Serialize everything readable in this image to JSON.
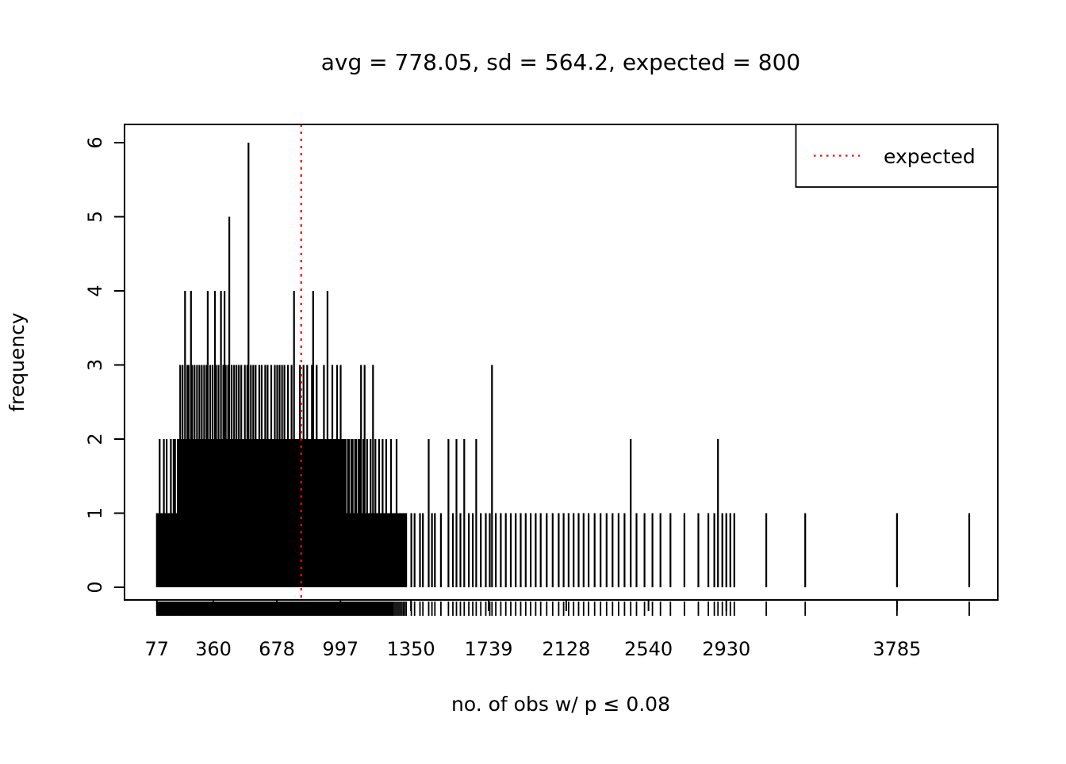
{
  "figure": {
    "title": "avg = 778.05, sd = 564.2, expected = 800"
  },
  "chart_data": {
    "type": "bar",
    "subtype": "spike-frequency-plot-with-rug",
    "title": "avg = 778.05, sd = 564.2, expected = 800",
    "xlabel": "no. of obs w/ p ≤ 0.08",
    "ylabel": "frequency",
    "xlim": [
      -85,
      4290
    ],
    "ylim": [
      0,
      6
    ],
    "x_ticks": [
      77,
      360,
      678,
      997,
      1350,
      1739,
      2128,
      2540,
      2930,
      3785
    ],
    "y_ticks": [
      0,
      1,
      2,
      3,
      4,
      5,
      6
    ],
    "grid": false,
    "bar_color": "#000000",
    "expected_line": {
      "x": 800,
      "color": "#ff0000",
      "style": "dotted",
      "label": "expected"
    },
    "legend": {
      "position": "top-right",
      "entries": [
        {
          "label": "expected",
          "color": "#ff0000",
          "line_style": "dotted"
        }
      ]
    },
    "rug": true,
    "spikes": [
      [
        77,
        1
      ],
      [
        84,
        1
      ],
      [
        91,
        2
      ],
      [
        98,
        1
      ],
      [
        105,
        1
      ],
      [
        112,
        2
      ],
      [
        119,
        1
      ],
      [
        126,
        2
      ],
      [
        133,
        1
      ],
      [
        140,
        1
      ],
      [
        147,
        2
      ],
      [
        154,
        1
      ],
      [
        161,
        2
      ],
      [
        168,
        2
      ],
      [
        175,
        1
      ],
      [
        182,
        2
      ],
      [
        188,
        2
      ],
      [
        194,
        3
      ],
      [
        200,
        2
      ],
      [
        206,
        3
      ],
      [
        212,
        2
      ],
      [
        218,
        4
      ],
      [
        224,
        2
      ],
      [
        230,
        3
      ],
      [
        236,
        3
      ],
      [
        242,
        2
      ],
      [
        248,
        4
      ],
      [
        254,
        3
      ],
      [
        260,
        2
      ],
      [
        266,
        3
      ],
      [
        272,
        2
      ],
      [
        278,
        3
      ],
      [
        284,
        2
      ],
      [
        290,
        3
      ],
      [
        296,
        2
      ],
      [
        302,
        3
      ],
      [
        308,
        2
      ],
      [
        314,
        3
      ],
      [
        320,
        2
      ],
      [
        326,
        3
      ],
      [
        332,
        4
      ],
      [
        338,
        2
      ],
      [
        344,
        3
      ],
      [
        350,
        2
      ],
      [
        356,
        3
      ],
      [
        362,
        2
      ],
      [
        368,
        4
      ],
      [
        374,
        3
      ],
      [
        380,
        2
      ],
      [
        386,
        3
      ],
      [
        392,
        2
      ],
      [
        398,
        4
      ],
      [
        404,
        2
      ],
      [
        410,
        3
      ],
      [
        416,
        4
      ],
      [
        422,
        3
      ],
      [
        428,
        2
      ],
      [
        434,
        3
      ],
      [
        440,
        5
      ],
      [
        446,
        2
      ],
      [
        452,
        3
      ],
      [
        458,
        2
      ],
      [
        464,
        3
      ],
      [
        470,
        2
      ],
      [
        476,
        3
      ],
      [
        482,
        2
      ],
      [
        488,
        3
      ],
      [
        494,
        2
      ],
      [
        500,
        3
      ],
      [
        506,
        2
      ],
      [
        512,
        2
      ],
      [
        518,
        3
      ],
      [
        524,
        2
      ],
      [
        530,
        3
      ],
      [
        536,
        6
      ],
      [
        542,
        2
      ],
      [
        548,
        3
      ],
      [
        554,
        2
      ],
      [
        560,
        3
      ],
      [
        566,
        2
      ],
      [
        572,
        3
      ],
      [
        578,
        2
      ],
      [
        584,
        2
      ],
      [
        590,
        3
      ],
      [
        596,
        2
      ],
      [
        602,
        3
      ],
      [
        608,
        2
      ],
      [
        614,
        2
      ],
      [
        620,
        3
      ],
      [
        626,
        2
      ],
      [
        632,
        3
      ],
      [
        638,
        2
      ],
      [
        644,
        2
      ],
      [
        650,
        3
      ],
      [
        656,
        2
      ],
      [
        662,
        2
      ],
      [
        668,
        3
      ],
      [
        674,
        2
      ],
      [
        680,
        3
      ],
      [
        686,
        2
      ],
      [
        692,
        3
      ],
      [
        698,
        2
      ],
      [
        704,
        3
      ],
      [
        710,
        2
      ],
      [
        716,
        3
      ],
      [
        722,
        2
      ],
      [
        728,
        2
      ],
      [
        734,
        3
      ],
      [
        740,
        2
      ],
      [
        746,
        2
      ],
      [
        752,
        3
      ],
      [
        758,
        2
      ],
      [
        764,
        4
      ],
      [
        770,
        2
      ],
      [
        776,
        2
      ],
      [
        782,
        2
      ],
      [
        788,
        2
      ],
      [
        794,
        3
      ],
      [
        800,
        2
      ],
      [
        806,
        2
      ],
      [
        812,
        3
      ],
      [
        818,
        2
      ],
      [
        824,
        2
      ],
      [
        830,
        3
      ],
      [
        836,
        2
      ],
      [
        842,
        2
      ],
      [
        848,
        2
      ],
      [
        854,
        3
      ],
      [
        860,
        4
      ],
      [
        866,
        2
      ],
      [
        872,
        2
      ],
      [
        878,
        3
      ],
      [
        884,
        2
      ],
      [
        890,
        2
      ],
      [
        896,
        2
      ],
      [
        902,
        2
      ],
      [
        908,
        2
      ],
      [
        914,
        3
      ],
      [
        920,
        2
      ],
      [
        926,
        2
      ],
      [
        932,
        4
      ],
      [
        938,
        2
      ],
      [
        944,
        2
      ],
      [
        950,
        2
      ],
      [
        956,
        3
      ],
      [
        962,
        2
      ],
      [
        968,
        2
      ],
      [
        974,
        2
      ],
      [
        980,
        3
      ],
      [
        986,
        2
      ],
      [
        992,
        2
      ],
      [
        998,
        3
      ],
      [
        1004,
        2
      ],
      [
        1010,
        2
      ],
      [
        1016,
        2
      ],
      [
        1022,
        2
      ],
      [
        1028,
        1
      ],
      [
        1034,
        2
      ],
      [
        1040,
        2
      ],
      [
        1046,
        1
      ],
      [
        1052,
        2
      ],
      [
        1058,
        2
      ],
      [
        1064,
        1
      ],
      [
        1070,
        2
      ],
      [
        1076,
        2
      ],
      [
        1082,
        1
      ],
      [
        1088,
        2
      ],
      [
        1094,
        2
      ],
      [
        1100,
        3
      ],
      [
        1106,
        1
      ],
      [
        1112,
        2
      ],
      [
        1118,
        3
      ],
      [
        1124,
        1
      ],
      [
        1130,
        2
      ],
      [
        1136,
        1
      ],
      [
        1142,
        1
      ],
      [
        1148,
        2
      ],
      [
        1154,
        1
      ],
      [
        1160,
        3
      ],
      [
        1166,
        1
      ],
      [
        1172,
        2
      ],
      [
        1178,
        1
      ],
      [
        1184,
        1
      ],
      [
        1190,
        2
      ],
      [
        1196,
        1
      ],
      [
        1202,
        1
      ],
      [
        1208,
        2
      ],
      [
        1214,
        1
      ],
      [
        1220,
        1
      ],
      [
        1226,
        2
      ],
      [
        1232,
        1
      ],
      [
        1238,
        1
      ],
      [
        1244,
        1
      ],
      [
        1250,
        2
      ],
      [
        1256,
        1
      ],
      [
        1262,
        1
      ],
      [
        1270,
        1
      ],
      [
        1278,
        2
      ],
      [
        1286,
        1
      ],
      [
        1294,
        1
      ],
      [
        1302,
        1
      ],
      [
        1310,
        1
      ],
      [
        1318,
        1
      ],
      [
        1326,
        1
      ],
      [
        1352,
        1
      ],
      [
        1368,
        1
      ],
      [
        1395,
        1
      ],
      [
        1410,
        1
      ],
      [
        1439,
        2
      ],
      [
        1455,
        1
      ],
      [
        1470,
        1
      ],
      [
        1500,
        1
      ],
      [
        1538,
        2
      ],
      [
        1560,
        1
      ],
      [
        1578,
        2
      ],
      [
        1598,
        1
      ],
      [
        1617,
        2
      ],
      [
        1640,
        1
      ],
      [
        1660,
        1
      ],
      [
        1677,
        2
      ],
      [
        1700,
        1
      ],
      [
        1725,
        1
      ],
      [
        1745,
        1
      ],
      [
        1756,
        3
      ],
      [
        1775,
        1
      ],
      [
        1800,
        1
      ],
      [
        1825,
        1
      ],
      [
        1850,
        1
      ],
      [
        1875,
        1
      ],
      [
        1900,
        1
      ],
      [
        1925,
        1
      ],
      [
        1950,
        1
      ],
      [
        1975,
        1
      ],
      [
        2000,
        1
      ],
      [
        2030,
        1
      ],
      [
        2060,
        1
      ],
      [
        2090,
        1
      ],
      [
        2115,
        1
      ],
      [
        2140,
        1
      ],
      [
        2165,
        1
      ],
      [
        2190,
        1
      ],
      [
        2215,
        1
      ],
      [
        2240,
        1
      ],
      [
        2270,
        1
      ],
      [
        2300,
        1
      ],
      [
        2330,
        1
      ],
      [
        2360,
        1
      ],
      [
        2390,
        1
      ],
      [
        2420,
        1
      ],
      [
        2451,
        2
      ],
      [
        2480,
        1
      ],
      [
        2520,
        1
      ],
      [
        2560,
        1
      ],
      [
        2600,
        1
      ],
      [
        2650,
        1
      ],
      [
        2720,
        1
      ],
      [
        2790,
        1
      ],
      [
        2840,
        1
      ],
      [
        2870,
        1
      ],
      [
        2888,
        2
      ],
      [
        2910,
        1
      ],
      [
        2930,
        1
      ],
      [
        2950,
        1
      ],
      [
        2970,
        1
      ],
      [
        3130,
        1
      ],
      [
        3325,
        1
      ],
      [
        3785,
        1
      ],
      [
        4147,
        1
      ]
    ]
  }
}
